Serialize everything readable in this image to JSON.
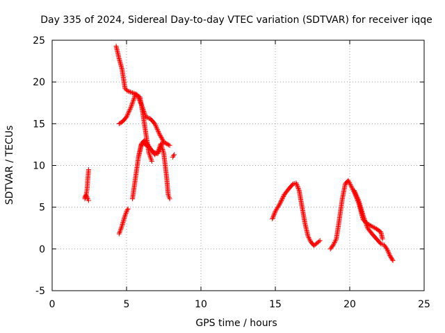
{
  "chart_data": {
    "type": "scatter",
    "title": "Day 335 of 2024, Sidereal Day-to-day VTEC variation (SDTVAR) for receiver iqqe",
    "xlabel": "GPS time / hours",
    "ylabel": "SDTVAR / TECUs",
    "xlim": [
      0,
      25
    ],
    "ylim": [
      -5,
      25
    ],
    "xticks": [
      0,
      5,
      10,
      15,
      20,
      25
    ],
    "yticks": [
      -5,
      0,
      5,
      10,
      15,
      20,
      25
    ],
    "grid": true,
    "marker": "plus",
    "color": "#ff0000",
    "segments": [
      {
        "x": [
          2.2,
          2.3,
          2.35,
          2.4,
          2.45
        ],
        "y": [
          6.2,
          6.6,
          7.2,
          8.5,
          9.5
        ]
      },
      {
        "x": [
          2.2,
          2.3,
          2.4,
          2.45
        ],
        "y": [
          6.0,
          6.4,
          6.0,
          5.8
        ]
      },
      {
        "x": [
          4.3,
          4.5,
          4.7,
          4.9,
          5.1,
          5.4,
          5.7,
          6.0,
          6.3,
          6.6,
          6.9,
          7.2,
          7.5,
          7.7,
          7.9
        ],
        "y": [
          24.3,
          22.8,
          21.5,
          19.2,
          18.9,
          18.7,
          18.5,
          17.3,
          15.8,
          15.6,
          15.0,
          13.8,
          12.8,
          12.6,
          12.4
        ]
      },
      {
        "x": [
          4.5,
          4.7,
          5.0,
          5.3,
          5.6,
          5.9,
          6.1,
          6.3,
          6.5,
          6.7
        ],
        "y": [
          15.0,
          15.2,
          15.8,
          17.0,
          18.5,
          18.2,
          16.2,
          13.8,
          11.5,
          10.5
        ]
      },
      {
        "x": [
          4.5,
          4.7,
          4.9,
          5.05,
          5.1
        ],
        "y": [
          1.8,
          2.8,
          4.0,
          4.7,
          4.8
        ]
      },
      {
        "x": [
          5.4,
          5.6,
          5.8,
          6.0,
          6.2,
          6.4,
          6.6,
          6.9,
          7.1,
          7.3,
          7.5,
          7.7,
          7.8,
          7.9
        ],
        "y": [
          6.0,
          8.5,
          11.0,
          12.6,
          13.0,
          12.6,
          12.0,
          11.3,
          11.6,
          12.6,
          11.5,
          8.5,
          6.5,
          6.0
        ]
      },
      {
        "x": [
          5.8,
          6.0,
          6.2,
          6.5,
          6.8,
          7.1,
          7.4
        ],
        "y": [
          11.0,
          12.5,
          12.6,
          12.2,
          11.6,
          11.4,
          12.6
        ]
      },
      {
        "x": [
          8.1,
          8.2
        ],
        "y": [
          11.0,
          11.3
        ]
      },
      {
        "x": [
          14.8,
          15.0,
          15.3,
          15.6,
          15.9,
          16.2,
          16.4,
          16.6,
          16.8,
          17.0,
          17.2,
          17.4,
          17.6,
          17.8,
          18.0
        ],
        "y": [
          3.6,
          4.5,
          5.4,
          6.5,
          7.2,
          7.8,
          7.9,
          7.0,
          5.0,
          3.0,
          1.5,
          0.8,
          0.4,
          0.7,
          1.0
        ]
      },
      {
        "x": [
          18.7,
          18.9,
          19.1,
          19.3,
          19.5,
          19.7,
          19.9,
          20.1,
          20.3,
          20.6,
          20.9,
          21.2,
          21.5,
          21.8,
          22.1,
          22.2
        ],
        "y": [
          0.0,
          0.5,
          1.2,
          3.5,
          6.0,
          7.8,
          8.2,
          7.5,
          6.8,
          5.5,
          3.5,
          3.0,
          2.7,
          2.4,
          2.0,
          1.2
        ]
      },
      {
        "x": [
          20.3,
          20.6,
          20.9,
          21.2,
          21.5,
          21.8,
          22.1,
          22.3,
          22.5,
          22.7,
          22.9
        ],
        "y": [
          7.0,
          5.8,
          4.0,
          2.5,
          1.8,
          1.2,
          0.6,
          0.5,
          0.0,
          -0.8,
          -1.4
        ]
      }
    ]
  }
}
